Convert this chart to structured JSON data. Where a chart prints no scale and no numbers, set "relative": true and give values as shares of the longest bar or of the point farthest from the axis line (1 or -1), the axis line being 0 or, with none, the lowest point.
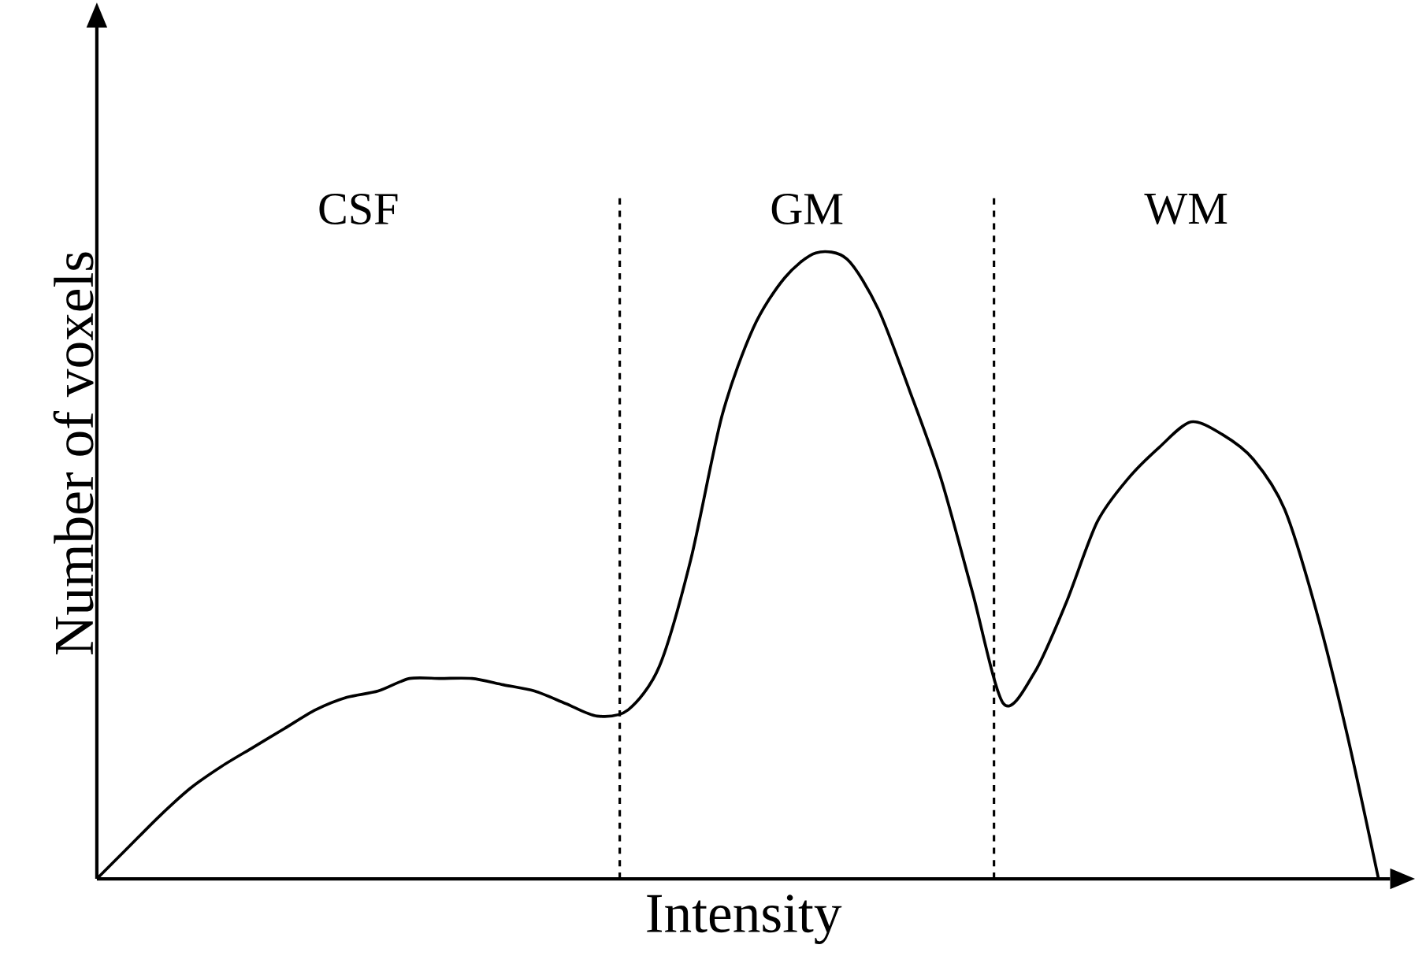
{
  "chart_data": {
    "type": "line",
    "relative": true,
    "xlabel": "Intensity",
    "ylabel": "Number of voxels",
    "categories": [
      null,
      null,
      null,
      null,
      null,
      null,
      null,
      null,
      null,
      null,
      null,
      null,
      null,
      null,
      null,
      null,
      null,
      null,
      null,
      null,
      null,
      null,
      null,
      null,
      null,
      null,
      null,
      null,
      null,
      null,
      null,
      null,
      null,
      null,
      null,
      null,
      null,
      null,
      null,
      null,
      null,
      null
    ],
    "series": [
      {
        "color": "#000000",
        "values": [
          0,
          0.05,
          0.1,
          0.145,
          0.18,
          0.21,
          0.24,
          0.27,
          0.29,
          0.3,
          0.32,
          0.32,
          0.32,
          0.31,
          0.3,
          0.28,
          0.26,
          0.27,
          0.34,
          0.51,
          0.74,
          0.88,
          0.96,
          1.0,
          0.99,
          0.91,
          0.78,
          0.64,
          0.46,
          0.28,
          0.33,
          0.44,
          0.57,
          0.64,
          0.69,
          0.73,
          0.71,
          0.67,
          0.59,
          0.43,
          0.23,
          0
        ]
      }
    ],
    "annotations": [
      "CSF",
      "GM",
      "WM"
    ],
    "line_style": "solid"
  }
}
